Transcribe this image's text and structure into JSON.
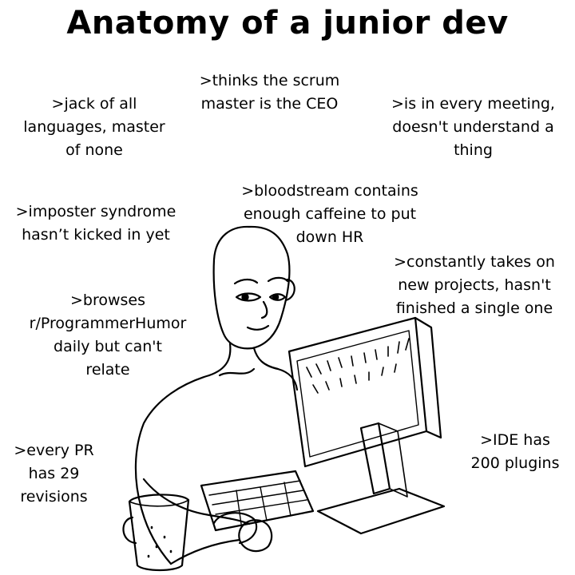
{
  "title": "Anatomy of a junior dev",
  "captions": {
    "scrum": [
      ">thinks the scrum",
      "master is the CEO"
    ],
    "jack": [
      ">jack of all",
      "languages, master",
      "of none"
    ],
    "meeting": [
      ">is in every meeting,",
      "doesn't understand a",
      "thing"
    ],
    "caffeine": [
      ">bloodstream contains",
      "enough caffeine to put",
      "down HR"
    ],
    "imposter": [
      ">imposter syndrome",
      "hasn’t kicked in yet"
    ],
    "projects": [
      ">constantly takes on",
      "new projects, hasn't",
      "finished a single one"
    ],
    "humor": [
      ">browses",
      "r/ProgrammerHumor",
      "daily but can't",
      "relate"
    ],
    "pr": [
      ">every PR",
      "has 29",
      "revisions"
    ],
    "ide": [
      ">IDE has",
      "200 plugins"
    ]
  },
  "icons": {
    "illustration": "wojak-at-computer-drawing"
  }
}
